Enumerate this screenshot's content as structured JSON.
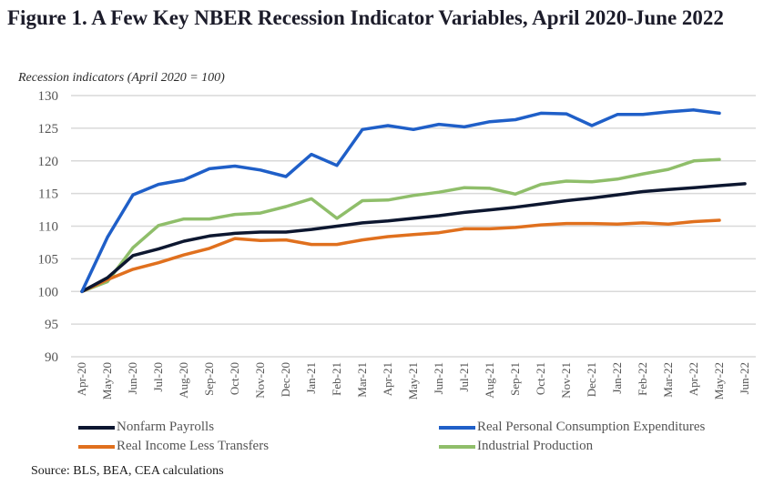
{
  "chart_data": {
    "type": "line",
    "title": "Figure 1. A Few Key NBER Recession Indicator Variables, April 2020-June 2022",
    "subtitle": "Recession indicators (April 2020 = 100)",
    "xlabel": "",
    "ylabel": "",
    "ylim": [
      90,
      130
    ],
    "yticks": [
      "130",
      "125",
      "120",
      "115",
      "110",
      "105",
      "100",
      "95",
      "90"
    ],
    "ytick_values": [
      130,
      125,
      120,
      115,
      110,
      105,
      100,
      95,
      90
    ],
    "grid": true,
    "legend_position": "bottom",
    "categories": [
      "Apr-20",
      "May-20",
      "Jun-20",
      "Jul-20",
      "Aug-20",
      "Sep-20",
      "Oct-20",
      "Nov-20",
      "Dec-20",
      "Jan-21",
      "Feb-21",
      "Mar-21",
      "Apr-21",
      "May-21",
      "Jun-21",
      "Jul-21",
      "Aug-21",
      "Sep-21",
      "Oct-21",
      "Nov-21",
      "Dec-21",
      "Jan-22",
      "Feb-22",
      "Mar-22",
      "Apr-22",
      "May-22",
      "Jun-22"
    ],
    "series": [
      {
        "name": "Nonfarm Payrolls",
        "color": "#0d1730",
        "values": [
          100,
          102.1,
          105.5,
          106.5,
          107.7,
          108.5,
          108.9,
          109.1,
          109.1,
          109.5,
          110.0,
          110.5,
          110.8,
          111.2,
          111.6,
          112.1,
          112.5,
          112.9,
          113.4,
          113.9,
          114.3,
          114.8,
          115.3,
          115.6,
          115.9,
          116.2,
          116.5
        ]
      },
      {
        "name": "Real Personal Consumption Expenditures",
        "color": "#1f5fc8",
        "values": [
          100,
          108.3,
          114.8,
          116.4,
          117.1,
          118.8,
          119.2,
          118.6,
          117.6,
          121.0,
          119.3,
          124.8,
          125.4,
          124.8,
          125.6,
          125.2,
          126.0,
          126.3,
          127.3,
          127.2,
          125.4,
          127.1,
          127.1,
          127.5,
          127.8,
          127.3,
          null
        ]
      },
      {
        "name": "Real Income Less Transfers",
        "color": "#e0701e",
        "values": [
          100,
          101.8,
          103.4,
          104.4,
          105.6,
          106.6,
          108.1,
          107.8,
          107.9,
          107.2,
          107.2,
          107.9,
          108.4,
          108.7,
          109.0,
          109.6,
          109.6,
          109.8,
          110.2,
          110.4,
          110.4,
          110.3,
          110.5,
          110.3,
          110.7,
          110.9,
          null
        ]
      },
      {
        "name": "Industrial Production",
        "color": "#8fbe6a",
        "values": [
          100,
          101.5,
          106.7,
          110.1,
          111.1,
          111.1,
          111.8,
          112.0,
          113.0,
          114.2,
          111.2,
          113.9,
          114.0,
          114.7,
          115.2,
          115.9,
          115.8,
          114.9,
          116.4,
          116.9,
          116.8,
          117.2,
          118.0,
          118.7,
          120.0,
          120.2,
          null
        ]
      }
    ]
  },
  "source": "Source: BLS, BEA, CEA calculations"
}
